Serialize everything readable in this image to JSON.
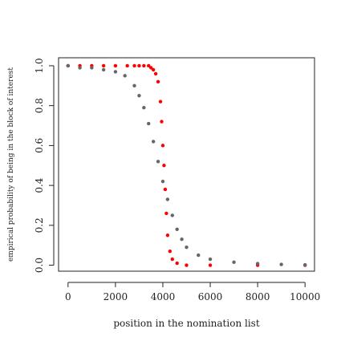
{
  "chart_data": {
    "type": "scatter",
    "xlabel": "position in the nomination list",
    "ylabel": "empirical probability of being in the block of interest",
    "xlim": [
      -400,
      10400
    ],
    "ylim": [
      -0.03,
      1.04
    ],
    "xticks": [
      "0",
      "2000",
      "4000",
      "6000",
      "8000",
      "10000"
    ],
    "yticks": [
      "0.0",
      "0.2",
      "0.4",
      "0.6",
      "0.8",
      "1.0"
    ],
    "grid": false,
    "legend": "none",
    "series": [
      {
        "color": "#ff0000",
        "points": [
          [
            0,
            1.0
          ],
          [
            500,
            1.0
          ],
          [
            1000,
            1.0
          ],
          [
            1500,
            1.0
          ],
          [
            2000,
            1.0
          ],
          [
            2500,
            1.0
          ],
          [
            2800,
            1.0
          ],
          [
            3000,
            1.0
          ],
          [
            3200,
            1.0
          ],
          [
            3400,
            1.0
          ],
          [
            3500,
            0.99
          ],
          [
            3600,
            0.98
          ],
          [
            3700,
            0.96
          ],
          [
            3800,
            0.92
          ],
          [
            3900,
            0.82
          ],
          [
            3950,
            0.72
          ],
          [
            4000,
            0.6
          ],
          [
            4050,
            0.5
          ],
          [
            4100,
            0.38
          ],
          [
            4150,
            0.26
          ],
          [
            4200,
            0.15
          ],
          [
            4300,
            0.07
          ],
          [
            4400,
            0.03
          ],
          [
            4600,
            0.01
          ],
          [
            5000,
            0.0
          ],
          [
            6000,
            0.0
          ],
          [
            8000,
            0.0
          ],
          [
            10000,
            0.0
          ]
        ]
      },
      {
        "color": "#666666",
        "points": [
          [
            0,
            1.0
          ],
          [
            500,
            0.99
          ],
          [
            1000,
            0.99
          ],
          [
            1500,
            0.98
          ],
          [
            2000,
            0.97
          ],
          [
            2400,
            0.95
          ],
          [
            2800,
            0.9
          ],
          [
            3000,
            0.85
          ],
          [
            3200,
            0.79
          ],
          [
            3400,
            0.71
          ],
          [
            3600,
            0.62
          ],
          [
            3800,
            0.52
          ],
          [
            4000,
            0.42
          ],
          [
            4200,
            0.33
          ],
          [
            4400,
            0.25
          ],
          [
            4600,
            0.18
          ],
          [
            4800,
            0.13
          ],
          [
            5000,
            0.09
          ],
          [
            5500,
            0.05
          ],
          [
            6000,
            0.03
          ],
          [
            7000,
            0.015
          ],
          [
            8000,
            0.008
          ],
          [
            9000,
            0.004
          ],
          [
            10000,
            0.002
          ]
        ]
      }
    ]
  }
}
